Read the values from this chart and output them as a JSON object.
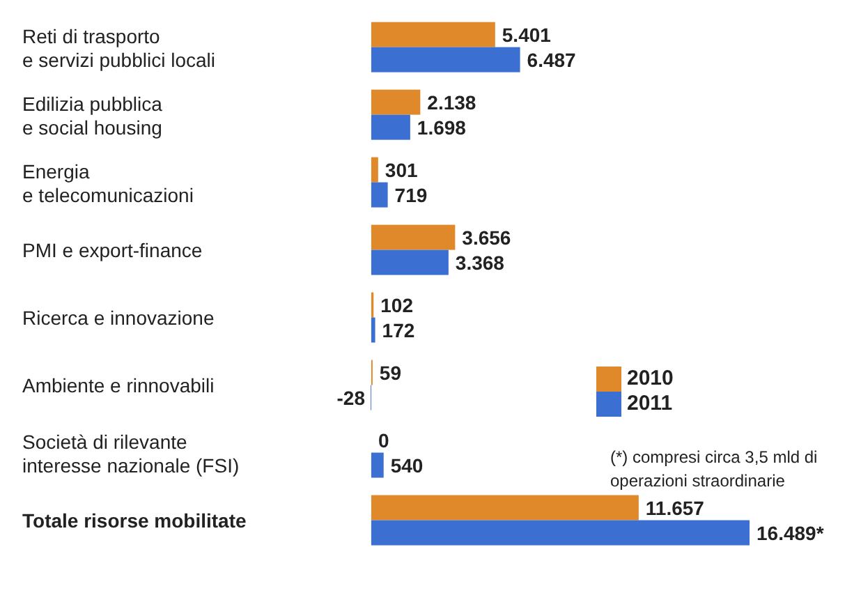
{
  "chart_data": {
    "type": "bar",
    "orientation": "horizontal",
    "categories": [
      "Reti di trasporto\ne servizi pubblici locali",
      "Edilizia pubblica\ne social housing",
      "Energia\ne telecomunicazioni",
      "PMI e export-finance",
      "Ricerca e innovazione",
      "Ambiente e rinnovabili",
      "Società di rilevante\ninteresse nazionale (FSI)",
      "Totale risorse mobilitate"
    ],
    "series": [
      {
        "name": "2010",
        "color": "#e0892b",
        "values": [
          5401,
          2138,
          301,
          3656,
          102,
          59,
          0,
          11657
        ],
        "value_labels": [
          "5.401",
          "2.138",
          "301",
          "3.656",
          "102",
          "59",
          "0",
          "11.657"
        ]
      },
      {
        "name": "2011",
        "color": "#3b6fd1",
        "values": [
          6487,
          1698,
          719,
          3368,
          172,
          -28,
          540,
          16489
        ],
        "value_labels": [
          "6.487",
          "1.698",
          "719",
          "3.368",
          "172",
          "-28",
          "540",
          "16.489*"
        ]
      }
    ],
    "tick_labels": "y",
    "grid": false,
    "legend": "right",
    "annotations": [
      "(*) compresi circa 3,5 mld di operazioni straordinarie"
    ]
  }
}
